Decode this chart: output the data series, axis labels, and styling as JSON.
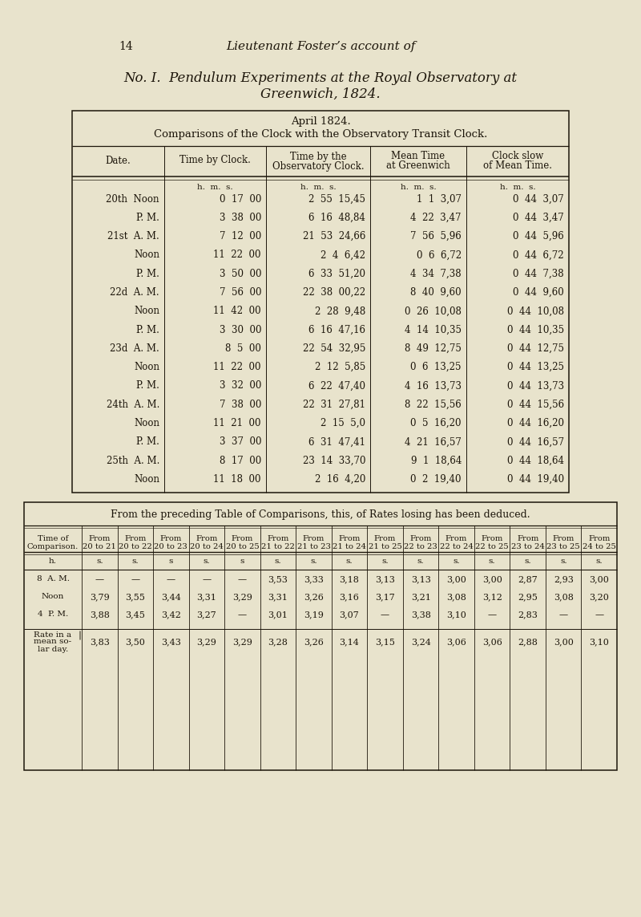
{
  "page_num": "14",
  "header_line": "Lieutenant Foster’s account of",
  "title_line1": "No. I.  Pendulum Experiments at the Royal Observatory at",
  "title_line2": "Greenwich, 1824.",
  "bg_color": "#e8e3cc",
  "table1_header1": "April 1824.",
  "table1_header2": "Comparisons of the Clock with the Observatory Transit Clock.",
  "table1_rows": [
    [
      "20th Noon",
      "0  17  00",
      "2  55  15,45",
      "1  1  3,07",
      "0  44  3,07"
    ],
    [
      "P. M.",
      "3  38  00",
      "6  16  48,84",
      "4  22  3,47",
      "0  44  3,47"
    ],
    [
      "21st  A. M.",
      "7  12  00",
      "21  53  24,66",
      "7  56  5,96",
      "0  44  5,96"
    ],
    [
      "Noon",
      "11  22  00",
      "2  4  6,42",
      "0  6  6,72",
      "0  44  6,72"
    ],
    [
      "P. M.",
      "3  50  00",
      "6  33  51,20",
      "4  34  7,38",
      "0  44  7,38"
    ],
    [
      "22d  A. M.",
      "7  56  00",
      "22  38  00,22",
      "8  40  9,60",
      "0  44  9,60"
    ],
    [
      "Noon",
      "11  42  00",
      "2  28  9,48",
      "0  26  10,08",
      "0  44  10,08"
    ],
    [
      "P. M.",
      "3  30  00",
      "6  16  47,16",
      "4  14  10,35",
      "0  44  10,35"
    ],
    [
      "23d  A. M.",
      "8  5  00",
      "22  54  32,95",
      "8  49  12,75",
      "0  44  12,75"
    ],
    [
      "Noon",
      "11  22  00",
      "2  12  5,85",
      "0  6  13,25",
      "0  44  13,25"
    ],
    [
      "P. M.",
      "3  32  00",
      "6  22  47,40",
      "4  16  13,73",
      "0  44  13,73"
    ],
    [
      "24th  A. M.",
      "7  38  00",
      "22  31  27,81",
      "8  22  15,56",
      "0  44  15,56"
    ],
    [
      "Noon",
      "11  21  00",
      "2  15  5,0",
      "0  5  16,20",
      "0  44  16,20"
    ],
    [
      "P. M.",
      "3  37  00",
      "6  31  47,41",
      "4  21  16,57",
      "0  44  16,57"
    ],
    [
      "25th  A. M.",
      "8  17  00",
      "23  14  33,70",
      "9  1  18,64",
      "0  44  18,64"
    ],
    [
      "Noon",
      "11  18  00",
      "2  16  4,20",
      "0  2  19,40",
      "0  44  19,40"
    ]
  ],
  "table2_header": "From the preceding Table of Comparisons, this, of Rates losing has been deduced.",
  "table2_col_headers": [
    "Time of\nComparison.",
    "From\n20 to 21",
    "From\n20 to 22",
    "From\n20 to 23",
    "From\n20 to 24",
    "From\n20 to 25",
    "From\n21 to 22",
    "From\n21 to 23",
    "From\n21 to 24",
    "From\n21 to 25",
    "From\n22 to 23",
    "From\n22 to 24",
    "From\n22 to 25",
    "From\n23 to 24",
    "From\n23 to 25",
    "From\n24 to 25"
  ],
  "table2_unit_row": [
    "h.",
    "s.",
    "s.",
    "s",
    "s.",
    "s",
    "s.",
    "s.",
    "s.",
    "s.",
    "s.",
    "s.",
    "s.",
    "s.",
    "s.",
    "s."
  ],
  "table2_rows": [
    [
      "8  A. M.",
      "—",
      "—",
      "—",
      "—",
      "—",
      "3,53",
      "3,33",
      "3,18",
      "3,13",
      "3,13",
      "3,00",
      "3,00",
      "2,87",
      "2,93",
      "3,00"
    ],
    [
      "Noon",
      "3,79",
      "3,55",
      "3,44",
      "3,31",
      "3,29",
      "3,31",
      "3,26",
      "3,16",
      "3,17",
      "3,21",
      "3,08",
      "3,12",
      "2,95",
      "3,08",
      "3,20"
    ],
    [
      "4  P. M.",
      "3,88",
      "3,45",
      "3,42",
      "3,27",
      "—",
      "3,01",
      "3,19",
      "3,07",
      "—",
      "3,38",
      "3,10",
      "—",
      "2,83",
      "—",
      "—"
    ],
    [
      "Rate in a\nmean so-\nlar day.",
      "3,83",
      "3,50",
      "3,43",
      "3,29",
      "3,29",
      "3,28",
      "3,26",
      "3,14",
      "3,15",
      "3,24",
      "3,06",
      "3,06",
      "2,88",
      "3,00",
      "3,10"
    ]
  ]
}
